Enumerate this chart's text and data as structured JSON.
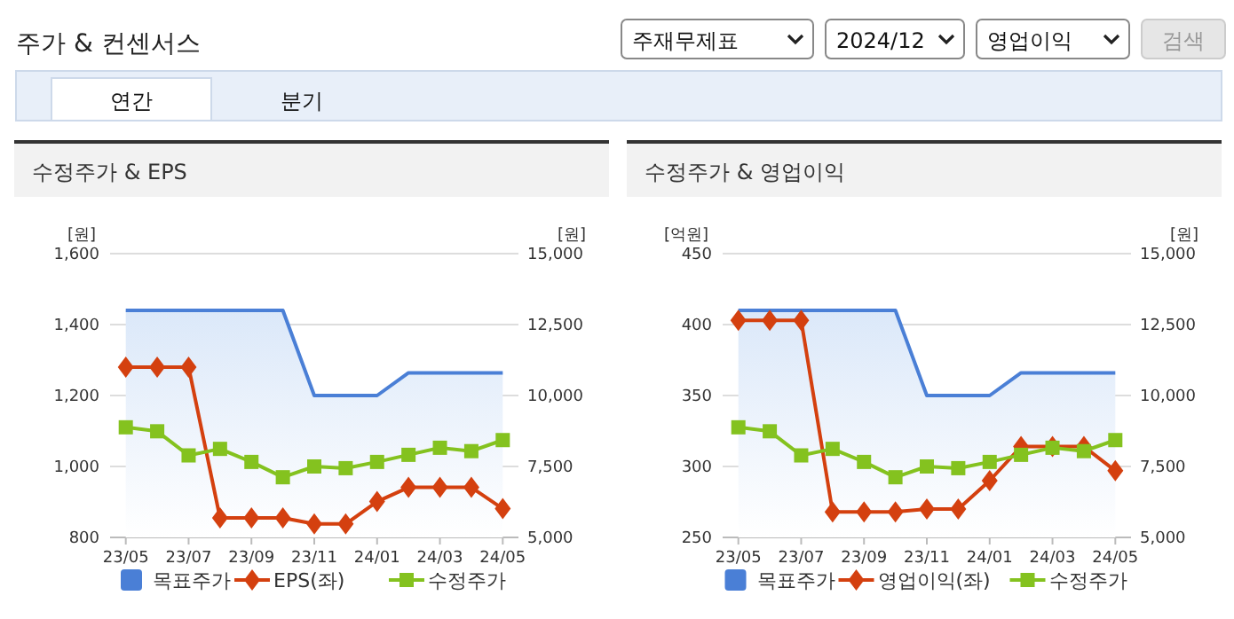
{
  "chart_data": [
    {
      "type": "other",
      "title": "주가 & 컨센서스",
      "annotations": [
        "주재무제표",
        "2024/12",
        "영업이익",
        "검색",
        "연간",
        "분기"
      ]
    },
    {
      "type": "line",
      "title": "수정주가 & EPS",
      "ylabel": "[원]",
      "y2label": "[원]",
      "categories": [
        "23/05",
        null,
        "23/07",
        null,
        "23/09",
        null,
        "23/11",
        null,
        "24/01",
        null,
        "24/03",
        null,
        "24/05"
      ],
      "series": [
        {
          "name": "목표주가",
          "type": "area",
          "axis": "y2",
          "color": "#4a7fd6",
          "marker": "none",
          "values": [
            13000,
            13000,
            13000,
            13000,
            13000,
            13000,
            10000,
            10000,
            10000,
            10800,
            10800,
            10800,
            10800
          ]
        },
        {
          "name": "EPS(좌)",
          "type": "line",
          "color": "#d4400f",
          "marker": "diamond",
          "values": [
            1280,
            1280,
            1280,
            855,
            855,
            855,
            838,
            838,
            901,
            941,
            941,
            941,
            881
          ]
        },
        {
          "name": "수정주가",
          "type": "line",
          "axis": "y2",
          "color": "#84c21f",
          "marker": "square",
          "values": [
            8880,
            8740,
            7890,
            8120,
            7660,
            7120,
            7500,
            7440,
            7660,
            7910,
            8160,
            8040,
            8430
          ]
        }
      ],
      "ylim": [
        800,
        1600
      ],
      "yticks": [
        800,
        {
          "value": 1000,
          "label": "1,000"
        },
        {
          "value": 1200,
          "label": "1,200"
        },
        {
          "value": 1400,
          "label": "1,400"
        },
        {
          "value": 1600,
          "label": "1,600"
        }
      ],
      "y2lim": [
        5000,
        15000
      ],
      "y2ticks": [
        {
          "value": 5000,
          "label": "5,000"
        },
        {
          "value": 7500,
          "label": "7,500"
        },
        {
          "value": 10000,
          "label": "10,000"
        },
        {
          "value": 12500,
          "label": "12,500"
        },
        {
          "value": 15000,
          "label": "15,000"
        }
      ],
      "grid": "y",
      "legend": "bottom"
    },
    {
      "type": "line",
      "title": "수정주가 & 영업이익",
      "ylabel": "[억원]",
      "y2label": "[원]",
      "categories": [
        "23/05",
        null,
        "23/07",
        null,
        "23/09",
        null,
        "23/11",
        null,
        "24/01",
        null,
        "24/03",
        null,
        "24/05"
      ],
      "series": [
        {
          "name": "목표주가",
          "type": "area",
          "axis": "y2",
          "color": "#4a7fd6",
          "marker": "none",
          "values": [
            13000,
            13000,
            13000,
            13000,
            13000,
            13000,
            10000,
            10000,
            10000,
            10800,
            10800,
            10800,
            10800
          ]
        },
        {
          "name": "영업이익(좌)",
          "type": "line",
          "color": "#d4400f",
          "marker": "diamond",
          "values": [
            403,
            403,
            403,
            268,
            268,
            268,
            270,
            270,
            290,
            314,
            314,
            314,
            297
          ]
        },
        {
          "name": "수정주가",
          "type": "line",
          "axis": "y2",
          "color": "#84c21f",
          "marker": "square",
          "values": [
            8880,
            8740,
            7890,
            8120,
            7660,
            7120,
            7500,
            7440,
            7660,
            7910,
            8160,
            8040,
            8430
          ]
        }
      ],
      "ylim": [
        250,
        450
      ],
      "yticks": [
        250,
        300,
        350,
        400,
        450
      ],
      "y2lim": [
        5000,
        15000
      ],
      "y2ticks": [
        {
          "value": 5000,
          "label": "5,000"
        },
        {
          "value": 7500,
          "label": "7,500"
        },
        {
          "value": 10000,
          "label": "10,000"
        },
        {
          "value": 12500,
          "label": "12,500"
        },
        {
          "value": 15000,
          "label": "15,000"
        }
      ],
      "grid": "y",
      "legend": "bottom"
    }
  ]
}
